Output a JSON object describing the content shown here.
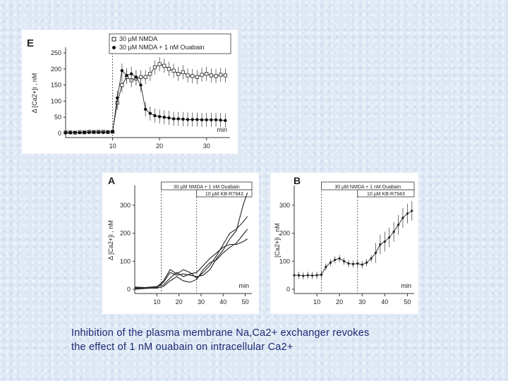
{
  "caption": {
    "line1": "Inhibition of the plasma membrane Na,Ca2+ exchanger revokes",
    "line2": "the effect of 1 nM ouabain on intracellular Ca2+"
  },
  "chart_data": [
    {
      "id": "E",
      "type": "line",
      "panel_label": "E",
      "ylabel": "Δ [Ca2+]i , nM",
      "xlabel": "min",
      "xlim": [
        0,
        35
      ],
      "ylim": [
        0,
        250
      ],
      "xticks": [
        10,
        20,
        30
      ],
      "yticks": [
        0,
        50,
        100,
        150,
        200,
        250
      ],
      "marker_time": 10,
      "legend": "top-right",
      "series": [
        {
          "name": "30 µM NMDA",
          "marker": "open-square",
          "x": [
            0,
            1,
            2,
            3,
            4,
            5,
            6,
            7,
            8,
            9,
            10,
            11,
            12,
            13,
            14,
            15,
            16,
            17,
            18,
            19,
            20,
            21,
            22,
            23,
            24,
            25,
            26,
            27,
            28,
            29,
            30,
            31,
            32,
            33,
            34
          ],
          "y": [
            3,
            3,
            2,
            4,
            3,
            5,
            4,
            5,
            5,
            4,
            5,
            95,
            150,
            175,
            165,
            170,
            175,
            175,
            185,
            205,
            215,
            210,
            200,
            195,
            185,
            190,
            180,
            178,
            175,
            182,
            185,
            180,
            178,
            182,
            180
          ]
        },
        {
          "name": "30 µM NMDA + 1 nM Ouabain",
          "marker": "filled-circle",
          "x": [
            0,
            1,
            2,
            3,
            4,
            5,
            6,
            7,
            8,
            9,
            10,
            11,
            12,
            13,
            14,
            15,
            16,
            17,
            18,
            19,
            20,
            21,
            22,
            23,
            24,
            25,
            26,
            27,
            28,
            29,
            30,
            31,
            32,
            33,
            34
          ],
          "y": [
            2,
            2,
            3,
            2,
            3,
            3,
            4,
            3,
            3,
            4,
            5,
            110,
            195,
            180,
            185,
            175,
            150,
            75,
            62,
            55,
            52,
            50,
            48,
            45,
            45,
            44,
            43,
            43,
            43,
            42,
            42,
            42,
            42,
            41,
            40
          ]
        }
      ]
    },
    {
      "id": "A",
      "type": "line",
      "panel_label": "A",
      "ylabel": "Δ [Ca2+]i , nM",
      "xlabel": "min",
      "xlim": [
        0,
        53
      ],
      "ylim": [
        0,
        350
      ],
      "xticks": [
        10,
        20,
        30,
        40,
        50
      ],
      "yticks": [
        0,
        100,
        200,
        300
      ],
      "marker_times": [
        12,
        28
      ],
      "annotations": [
        "30 µM NMDA + 1 nM Ouabain",
        "10 µM KB-R7943"
      ],
      "series": [
        {
          "x": [
            0,
            5,
            10,
            13,
            16,
            19,
            22,
            25,
            28,
            31,
            34,
            37,
            40,
            43,
            46,
            49,
            51
          ],
          "y": [
            5,
            6,
            8,
            30,
            70,
            55,
            70,
            60,
            40,
            60,
            85,
            120,
            160,
            200,
            215,
            240,
            260
          ]
        },
        {
          "x": [
            0,
            5,
            10,
            13,
            16,
            19,
            22,
            25,
            28,
            31,
            34,
            37,
            40,
            43,
            46,
            49,
            51
          ],
          "y": [
            0,
            3,
            5,
            25,
            60,
            50,
            55,
            50,
            45,
            50,
            70,
            110,
            140,
            180,
            210,
            300,
            345
          ]
        },
        {
          "x": [
            0,
            5,
            10,
            13,
            16,
            19,
            22,
            25,
            28,
            31,
            34,
            37,
            40,
            43,
            46,
            49,
            51
          ],
          "y": [
            8,
            6,
            10,
            15,
            40,
            60,
            45,
            55,
            60,
            85,
            110,
            130,
            150,
            160,
            160,
            170,
            180
          ]
        },
        {
          "x": [
            0,
            5,
            10,
            13,
            16,
            19,
            22,
            25,
            28,
            31,
            34,
            37,
            40,
            43,
            46,
            49,
            51
          ],
          "y": [
            2,
            5,
            4,
            10,
            30,
            45,
            30,
            25,
            35,
            70,
            95,
            105,
            130,
            150,
            165,
            195,
            215
          ]
        }
      ]
    },
    {
      "id": "B",
      "type": "line",
      "panel_label": "B",
      "ylabel": "[Ca2+]i , nM",
      "xlabel": "min",
      "xlim": [
        0,
        53
      ],
      "ylim": [
        0,
        350
      ],
      "xticks": [
        10,
        20,
        30,
        40,
        50
      ],
      "yticks": [
        0,
        100,
        200,
        300
      ],
      "marker_times": [
        12,
        28
      ],
      "annotations": [
        "30 µM NMDA + 1 nM Ouabain",
        "10 µM KB-R7943"
      ],
      "series": [
        {
          "x": [
            0,
            2,
            4,
            6,
            8,
            10,
            12,
            14,
            16,
            18,
            20,
            22,
            24,
            26,
            28,
            30,
            32,
            34,
            36,
            38,
            40,
            42,
            44,
            46,
            48,
            50,
            52
          ],
          "y": [
            50,
            50,
            48,
            50,
            49,
            50,
            52,
            80,
            95,
            105,
            110,
            100,
            92,
            90,
            92,
            88,
            95,
            110,
            130,
            160,
            170,
            185,
            205,
            230,
            255,
            270,
            280
          ]
        }
      ]
    }
  ]
}
